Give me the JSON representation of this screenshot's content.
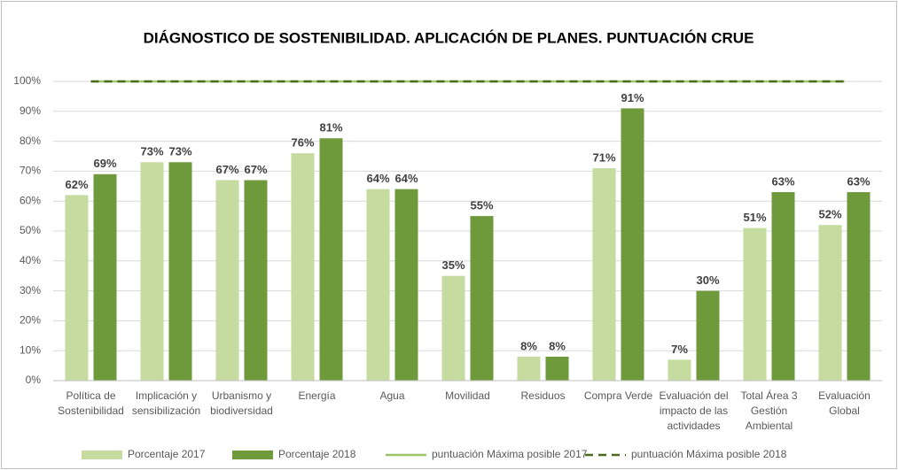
{
  "chart_data": {
    "type": "bar",
    "title": "DIÁGNOSTICO DE SOSTENIBILIDAD. APLICACIÓN DE PLANES. PUNTUACIÓN  CRUE",
    "categories": [
      "Política de Sostenibilidad",
      "Implicación y sensibilización",
      "Urbanismo y biodiversidad",
      "Energía",
      "Agua",
      "Movilidad",
      "Residuos",
      "Compra Verde",
      "Evaluación del impacto de las actividades",
      "Total Área 3 Gestión Ambiental",
      "Evaluación Global"
    ],
    "series": [
      {
        "name": "Porcentaje 2017",
        "type": "bar",
        "color": "#c5dba0",
        "values": [
          62,
          73,
          67,
          76,
          64,
          35,
          8,
          71,
          7,
          51,
          52
        ],
        "value_labels": [
          "62%",
          "73%",
          "67%",
          "76%",
          "64%",
          "35%",
          "8%",
          "71%",
          "7%",
          "51%",
          "52%"
        ]
      },
      {
        "name": "Porcentaje 2018",
        "type": "bar",
        "color": "#6f9a3c",
        "values": [
          69,
          73,
          67,
          81,
          64,
          55,
          8,
          91,
          30,
          63,
          63
        ],
        "value_labels": [
          "69%",
          "73%",
          "67%",
          "81%",
          "64%",
          "55%",
          "8%",
          "91%",
          "30%",
          "63%",
          "63%"
        ]
      },
      {
        "name": "puntuación Máxima posible 2017",
        "type": "line",
        "color": "#9cc46a",
        "dashed": false,
        "values": [
          100,
          100,
          100,
          100,
          100,
          100,
          100,
          100,
          100,
          100,
          100
        ]
      },
      {
        "name": "puntuación Máxima posible 2018",
        "type": "line",
        "color": "#4a6b1f",
        "dashed": true,
        "values": [
          100,
          100,
          100,
          100,
          100,
          100,
          100,
          100,
          100,
          100,
          100
        ]
      }
    ],
    "ylim": [
      0,
      100
    ],
    "yticks": [
      {
        "value": 0,
        "label": "0%"
      },
      {
        "value": 10,
        "label": "10%"
      },
      {
        "value": 20,
        "label": "20%"
      },
      {
        "value": 30,
        "label": "30%"
      },
      {
        "value": 40,
        "label": "40%"
      },
      {
        "value": 50,
        "label": "50%"
      },
      {
        "value": 60,
        "label": "60%"
      },
      {
        "value": 70,
        "label": "70%"
      },
      {
        "value": 80,
        "label": "80%"
      },
      {
        "value": 90,
        "label": "90%"
      },
      {
        "value": 100,
        "label": "100%"
      }
    ],
    "grid": true,
    "legend": "bottom"
  }
}
